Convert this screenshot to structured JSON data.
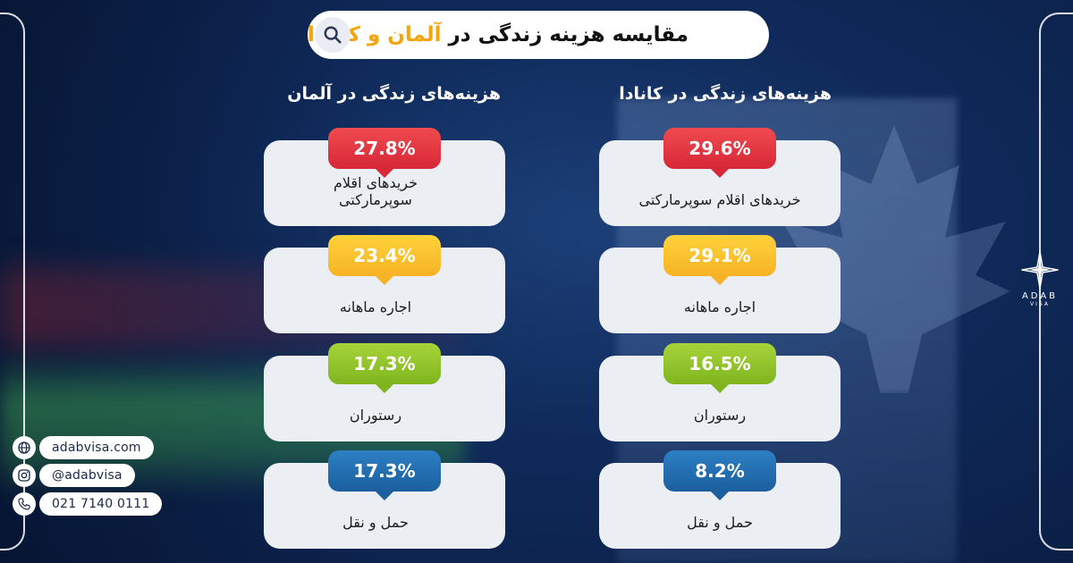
{
  "title": {
    "prefix": "مقایسه هزینه زندگی در",
    "highlight": "آلمان و کانادا"
  },
  "columns": {
    "germany": {
      "heading": "هزینه‌های زندگی در آلمان",
      "items": [
        {
          "percent": "27.8%",
          "label": "خریدهای اقلام سوپرمارکتی",
          "color": "red"
        },
        {
          "percent": "23.4%",
          "label": "اجاره ماهانه",
          "color": "yellow"
        },
        {
          "percent": "17.3%",
          "label": "رستوران",
          "color": "green"
        },
        {
          "percent": "17.3%",
          "label": "حمل و نقل",
          "color": "blue"
        }
      ]
    },
    "canada": {
      "heading": "هزینه‌های زندگی در کانادا",
      "items": [
        {
          "percent": "29.6%",
          "label": "خریدهای اقلام سوپرمارکتی",
          "color": "red"
        },
        {
          "percent": "29.1%",
          "label": "اجاره ماهانه",
          "color": "yellow"
        },
        {
          "percent": "16.5%",
          "label": "رستوران",
          "color": "green"
        },
        {
          "percent": "8.2%",
          "label": "حمل و نقل",
          "color": "blue"
        }
      ]
    }
  },
  "contacts": {
    "website": "adabvisa.com",
    "instagram": "@adabvisa",
    "phone": "021 7140 0111"
  },
  "logo": {
    "name": "ADAB",
    "sub": "VISA"
  },
  "colors": {
    "highlight": "#f2a60c",
    "red": "#d62837",
    "yellow": "#f6b325",
    "green": "#7fb51f",
    "blue": "#1b5f9e"
  }
}
